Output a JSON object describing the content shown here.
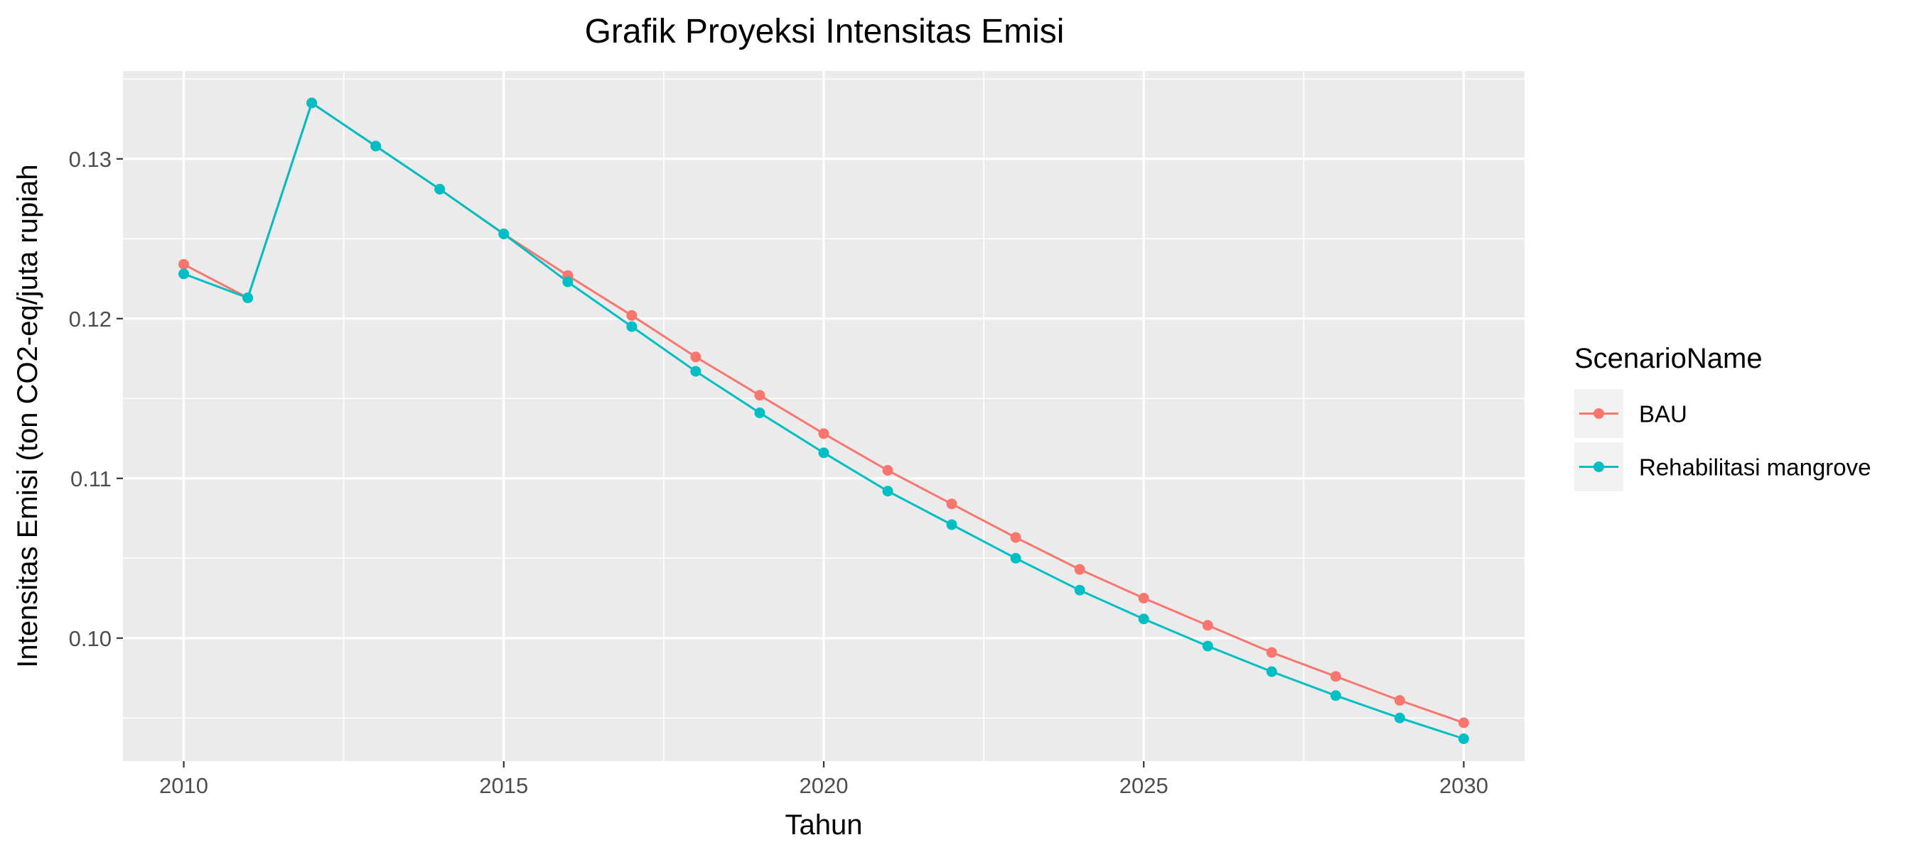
{
  "chart_data": {
    "type": "line",
    "title": "Grafik Proyeksi Intensitas Emisi",
    "xlabel": "Tahun",
    "ylabel": "Intensitas Emisi (ton CO2-eq/juta rupiah",
    "xlim": [
      2009.05,
      2030.95
    ],
    "ylim": [
      0.0923,
      0.1355
    ],
    "x_ticks": [
      2010,
      2015,
      2020,
      2025,
      2030
    ],
    "x_tick_labels": [
      "2010",
      "2015",
      "2020",
      "2025",
      "2030"
    ],
    "y_ticks": [
      0.1,
      0.11,
      0.12,
      0.13
    ],
    "y_tick_labels": [
      "0.10",
      "0.11",
      "0.12",
      "0.13"
    ],
    "grid": true,
    "legend": {
      "title": "ScenarioName",
      "position": "right"
    },
    "x": [
      2010,
      2011,
      2012,
      2013,
      2014,
      2015,
      2016,
      2017,
      2018,
      2019,
      2020,
      2021,
      2022,
      2023,
      2024,
      2025,
      2026,
      2027,
      2028,
      2029,
      2030
    ],
    "series": [
      {
        "name": "BAU",
        "color": "#F8766D",
        "values": [
          0.1234,
          0.1213,
          0.1335,
          0.1308,
          0.1281,
          0.1253,
          0.1227,
          0.1202,
          0.1176,
          0.1152,
          0.1128,
          0.1105,
          0.1084,
          0.1063,
          0.1043,
          0.1025,
          0.1008,
          0.0991,
          0.0976,
          0.0961,
          0.0947
        ]
      },
      {
        "name": "Rehabilitasi mangrove",
        "color": "#00BFC4",
        "values": [
          0.1228,
          0.1213,
          0.1335,
          0.1308,
          0.1281,
          0.1253,
          0.1223,
          0.1195,
          0.1167,
          0.1141,
          0.1116,
          0.1092,
          0.1071,
          0.105,
          0.103,
          0.1012,
          0.0995,
          0.0979,
          0.0964,
          0.095,
          0.0937
        ]
      }
    ]
  }
}
